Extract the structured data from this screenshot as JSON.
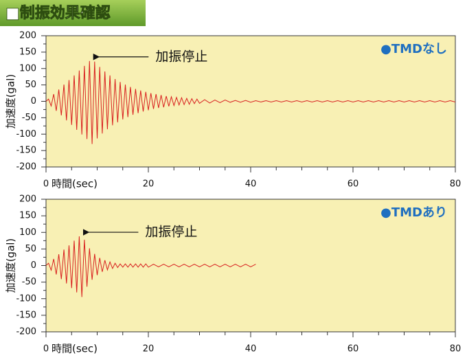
{
  "header": {
    "title": "■制振効果確認"
  },
  "chart_data": [
    {
      "type": "line",
      "label": "●TMDなし",
      "label_color": "#1f6fc0",
      "annotation": "加振停止",
      "xlabel": "時間(sec)",
      "ylabel": "加速度(gal)",
      "xlim": [
        0,
        80
      ],
      "xticks": [
        0,
        20,
        40,
        60,
        80
      ],
      "ylim": [
        -200,
        200
      ],
      "yticks": [
        -200,
        -150,
        -100,
        -50,
        0,
        50,
        100,
        150,
        200
      ],
      "background": "#f8f0b4",
      "series": [
        {
          "color": "#d81e1e",
          "x": [
            0,
            0.5,
            1,
            1.5,
            2,
            2.5,
            3,
            3.5,
            4,
            4.5,
            5,
            5.5,
            6,
            6.5,
            7,
            7.5,
            8,
            8.5,
            9,
            9.5,
            10,
            10.5,
            11,
            11.5,
            12,
            12.5,
            13,
            13.5,
            14,
            14.5,
            15,
            15.5,
            16,
            16.5,
            17,
            17.5,
            18,
            18.5,
            19,
            19.5,
            20,
            20.5,
            21,
            21.5,
            22,
            22.5,
            23,
            23.5,
            24,
            24.5,
            25,
            25.5,
            26,
            26.5,
            27,
            27.5,
            28,
            28.5,
            29,
            29.5,
            30,
            31,
            32,
            33,
            34,
            35,
            36,
            37,
            38,
            39,
            40,
            41,
            42,
            43,
            44,
            45,
            46,
            47,
            48,
            49,
            50,
            51,
            52,
            53,
            54,
            55,
            56,
            57,
            58,
            59,
            60,
            61,
            62,
            63,
            64,
            65,
            66,
            67,
            68,
            69,
            70,
            71,
            72,
            73,
            74,
            75,
            76,
            77,
            78,
            79,
            80
          ],
          "values": [
            0,
            7,
            -14,
            22,
            -29,
            36,
            -43,
            51,
            -58,
            65,
            -72,
            79,
            -87,
            94,
            -101,
            108,
            -115,
            123,
            -130,
            121,
            -113,
            105,
            -98,
            91,
            -85,
            79,
            -73,
            68,
            -64,
            59,
            -55,
            51,
            -48,
            44,
            -41,
            38,
            -36,
            33,
            -31,
            29,
            -27,
            25,
            -23,
            22,
            -20,
            19,
            -18,
            16,
            -15,
            14,
            -13,
            12,
            -11,
            11,
            -10,
            9,
            -9,
            8,
            -7,
            7,
            -6,
            5,
            -5,
            4,
            -4,
            4,
            -3,
            3,
            -3,
            3,
            -3,
            2,
            -2,
            2,
            -2,
            2,
            -2,
            2,
            -2,
            2,
            -2,
            2,
            -2,
            2,
            -2,
            2,
            -2,
            2,
            -2,
            2,
            -2,
            2,
            -2,
            2,
            -2,
            2,
            -2,
            2,
            -2,
            2,
            -2,
            2,
            -2,
            2,
            -2,
            2,
            -2,
            2,
            -2,
            2,
            -2
          ]
        }
      ]
    },
    {
      "type": "line",
      "label": "●TMDあり",
      "label_color": "#1f6fc0",
      "annotation": "加振停止",
      "xlabel": "時間(sec)",
      "ylabel": "加速度(gal)",
      "xlim": [
        0,
        80
      ],
      "xticks": [
        0,
        20,
        40,
        60,
        80
      ],
      "ylim": [
        -200,
        200
      ],
      "yticks": [
        -200,
        -150,
        -100,
        -50,
        0,
        50,
        100,
        150,
        200
      ],
      "background": "#f8f0b4",
      "series": [
        {
          "color": "#d81e1e",
          "x": [
            0,
            0.5,
            1,
            1.5,
            2,
            2.5,
            3,
            3.5,
            4,
            4.5,
            5,
            5.5,
            6,
            6.5,
            7,
            7.5,
            8,
            8.5,
            9,
            9.5,
            10,
            10.5,
            11,
            11.5,
            12,
            12.5,
            13,
            13.5,
            14,
            14.5,
            15,
            15.5,
            16,
            16.5,
            17,
            17.5,
            18,
            18.5,
            19,
            19.5,
            20,
            21,
            22,
            23,
            24,
            25,
            26,
            27,
            28,
            29,
            30,
            31,
            32,
            33,
            34,
            35,
            36,
            37,
            38,
            39,
            40,
            41
          ],
          "values": [
            0,
            7,
            -14,
            20,
            -27,
            34,
            -41,
            48,
            -54,
            61,
            -68,
            75,
            -81,
            88,
            -95,
            78,
            -64,
            52,
            -43,
            35,
            -29,
            23,
            -19,
            16,
            -13,
            11,
            -9,
            7,
            -6,
            5,
            -5,
            5,
            -5,
            5,
            -5,
            5,
            -5,
            5,
            -5,
            5,
            -5,
            4,
            -4,
            4,
            -4,
            4,
            -4,
            4,
            -4,
            4,
            -4,
            4,
            -4,
            4,
            -4,
            4,
            -4,
            4,
            -4,
            4,
            -4,
            4
          ]
        }
      ]
    }
  ]
}
